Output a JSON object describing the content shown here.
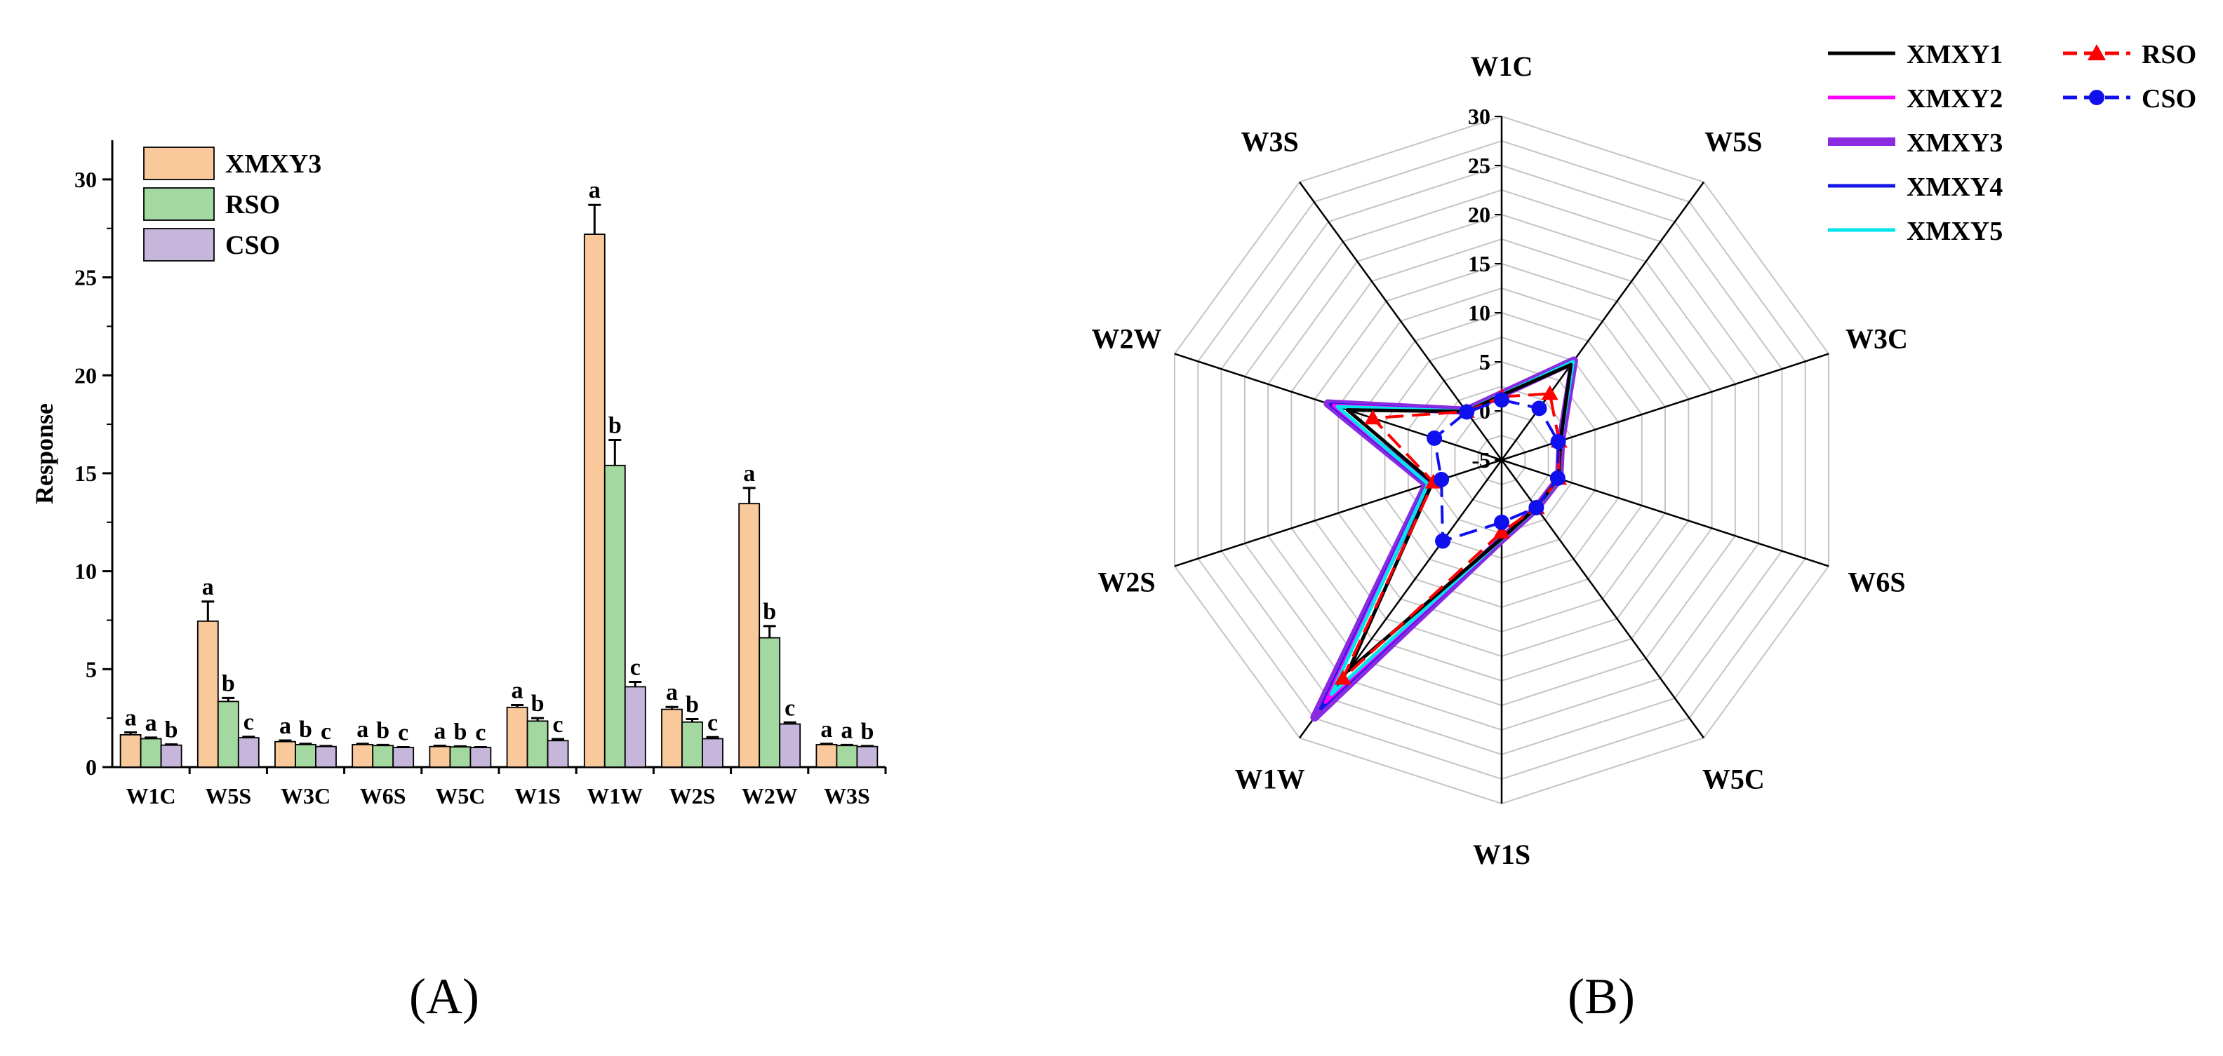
{
  "panels": {
    "a": "(A)",
    "b": "(B)"
  },
  "chart_data": [
    {
      "type": "bar",
      "ylabel": "Response",
      "xlabel": "",
      "ylim": [
        0,
        32
      ],
      "yticks": [
        0,
        5,
        10,
        15,
        20,
        25,
        30
      ],
      "legend_position": "top-left",
      "categories": [
        "W1C",
        "W5S",
        "W3C",
        "W6S",
        "W5C",
        "W1S",
        "W1W",
        "W2S",
        "W2W",
        "W3S"
      ],
      "series": [
        {
          "name": "XMXY3",
          "color": "#f9c89b",
          "values": [
            1.65,
            7.45,
            1.3,
            1.15,
            1.05,
            3.05,
            27.2,
            2.95,
            13.45,
            1.15
          ],
          "errors": [
            0.12,
            1.0,
            0.06,
            0.04,
            0.04,
            0.12,
            1.5,
            0.12,
            0.8,
            0.04
          ],
          "letters": [
            "a",
            "a",
            "a",
            "a",
            "a",
            "a",
            "a",
            "a",
            "a",
            "a"
          ]
        },
        {
          "name": "RSO",
          "color": "#a3d9a0",
          "values": [
            1.45,
            3.35,
            1.15,
            1.1,
            1.03,
            2.35,
            15.4,
            2.3,
            6.6,
            1.1
          ],
          "errors": [
            0.06,
            0.18,
            0.04,
            0.03,
            0.03,
            0.15,
            1.3,
            0.15,
            0.6,
            0.03
          ],
          "letters": [
            "a",
            "b",
            "b",
            "b",
            "b",
            "b",
            "b",
            "b",
            "b",
            "a"
          ]
        },
        {
          "name": "CSO",
          "color": "#c6b6db",
          "values": [
            1.12,
            1.5,
            1.05,
            1.0,
            1.0,
            1.35,
            4.1,
            1.45,
            2.2,
            1.05
          ],
          "errors": [
            0.04,
            0.05,
            0.03,
            0.02,
            0.02,
            0.08,
            0.25,
            0.08,
            0.08,
            0.03
          ],
          "letters": [
            "b",
            "c",
            "c",
            "c",
            "c",
            "c",
            "c",
            "c",
            "c",
            "b"
          ]
        }
      ]
    },
    {
      "type": "radar",
      "axes": [
        "W1C",
        "W5S",
        "W3C",
        "W6S",
        "W5C",
        "W1S",
        "W1W",
        "W2S",
        "W2W",
        "W3S"
      ],
      "rlim": [
        -5,
        30
      ],
      "rticks": [
        -5,
        0,
        5,
        10,
        15,
        20,
        25,
        30
      ],
      "legend_position": "top-right",
      "series": [
        {
          "name": "XMXY1",
          "color": "#000000",
          "marker": "none",
          "values": [
            1.6,
            7.0,
            1.3,
            1.1,
            1.0,
            3.0,
            21.5,
            2.4,
            11.5,
            1.1
          ]
        },
        {
          "name": "XMXY2",
          "color": "#ff00ff",
          "marker": "none",
          "values": [
            1.65,
            7.3,
            1.3,
            1.15,
            1.05,
            3.05,
            25.5,
            2.9,
            13.0,
            1.15
          ]
        },
        {
          "name": "XMXY3",
          "color": "#8a2be2",
          "marker": "none",
          "values": [
            1.7,
            7.5,
            1.35,
            1.15,
            1.05,
            3.1,
            27.4,
            3.0,
            13.6,
            1.2
          ]
        },
        {
          "name": "XMXY4",
          "color": "#1414e6",
          "marker": "none",
          "values": [
            1.65,
            7.4,
            1.3,
            1.15,
            1.05,
            3.05,
            26.3,
            2.95,
            13.3,
            1.15
          ]
        },
        {
          "name": "XMXY5",
          "color": "#00e5ee",
          "marker": "none",
          "values": [
            1.65,
            7.4,
            1.3,
            1.15,
            1.05,
            3.05,
            24.5,
            2.9,
            12.6,
            1.15
          ]
        },
        {
          "name": "RSO",
          "color": "#ff0000",
          "marker": "triangle",
          "values": [
            1.45,
            3.35,
            1.15,
            1.1,
            1.03,
            2.35,
            22.5,
            2.3,
            8.8,
            1.1
          ]
        },
        {
          "name": "CSO",
          "color": "#1010ee",
          "marker": "circle",
          "values": [
            1.12,
            1.5,
            1.05,
            1.0,
            1.0,
            1.35,
            5.2,
            1.45,
            2.2,
            1.05
          ]
        }
      ]
    }
  ]
}
